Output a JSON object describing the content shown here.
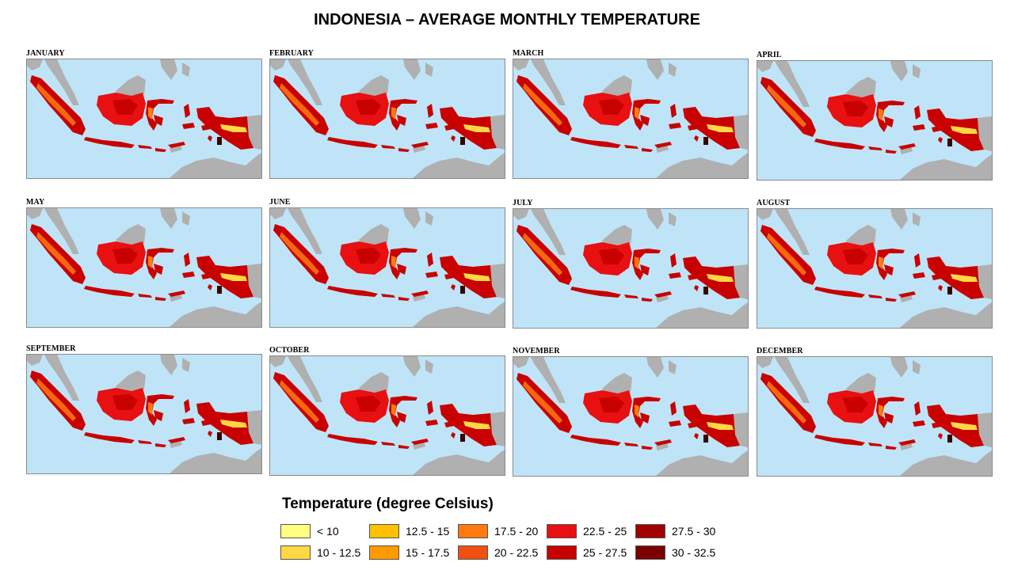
{
  "title": "INDONESIA – AVERAGE MONTHLY TEMPERATURE",
  "months": [
    "JANUARY",
    "FEBRUARY",
    "MARCH",
    "APRIL",
    "MAY",
    "JUNE",
    "JULY",
    "AUGUST",
    "SEPTEMBER",
    "OCTOBER",
    "NOVEMBER",
    "DECEMBER"
  ],
  "legend": {
    "title": "Temperature (degree Celsius)",
    "items": [
      {
        "label": "< 10",
        "color": "#ffff80"
      },
      {
        "label": "10 - 12.5",
        "color": "#ffd845"
      },
      {
        "label": "12.5 - 15",
        "color": "#ffc000"
      },
      {
        "label": "15 - 17.5",
        "color": "#ff9a00"
      },
      {
        "label": "17.5 - 20",
        "color": "#ff7a10"
      },
      {
        "label": "20 - 22.5",
        "color": "#f05010"
      },
      {
        "label": "22.5 - 25",
        "color": "#e81010"
      },
      {
        "label": "25 - 27.5",
        "color": "#c80000"
      },
      {
        "label": "27.5 - 30",
        "color": "#a00000"
      },
      {
        "label": "30 - 32.5",
        "color": "#7a0000"
      }
    ]
  },
  "colors": {
    "sea": "#bfe4f8",
    "neighbor_land": "#b0b0b0",
    "land_base": "#c80000",
    "land_warm": "#e81010",
    "highland_mid": "#ff7a10",
    "highland_cool": "#ffd845"
  }
}
